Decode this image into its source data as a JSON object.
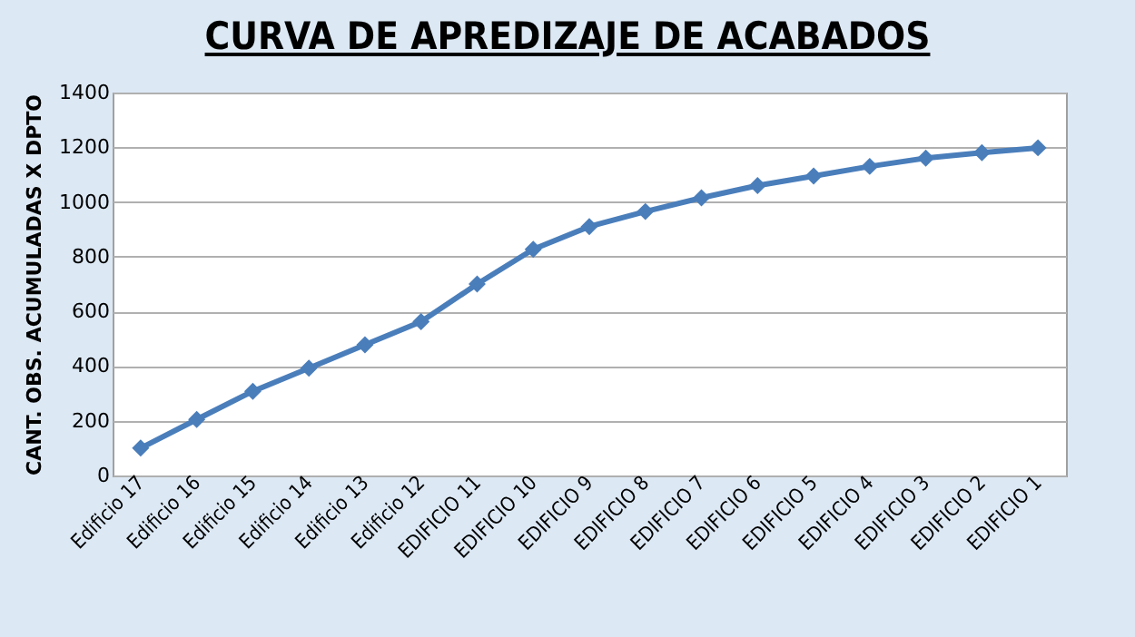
{
  "chart_data": {
    "type": "line",
    "title": "CURVA DE APREDIZAJE DE ACABADOS",
    "ylabel": "CANT. OBS. ACUMULADAS X DPTO",
    "categories": [
      "Edificio 17",
      "Edificio 16",
      "Edificio 15",
      "Edificio 14",
      "Edificio 13",
      "Edificio 12",
      "EDIFICIO 11",
      "EDIFICIO 10",
      "EDIFICIO 9",
      "EDIFICIO 8",
      "EDIFICIO 7",
      "EDIFICIO 6",
      "EDIFICIO 5",
      "EDIFICIO 4",
      "EDIFICIO 3",
      "EDIFICIO 2",
      "EDIFICIO 1"
    ],
    "series": [
      {
        "color": "#4a7ebb",
        "values": [
          100,
          205,
          308,
          392,
          478,
          562,
          700,
          827,
          910,
          965,
          1015,
          1060,
          1095,
          1130,
          1160,
          1180,
          1198
        ]
      }
    ],
    "ylim": [
      0,
      1400
    ],
    "yticks": [
      0,
      200,
      400,
      600,
      800,
      1000,
      1200,
      1400
    ],
    "grid": "y",
    "marker": "diamond",
    "legend": false
  }
}
